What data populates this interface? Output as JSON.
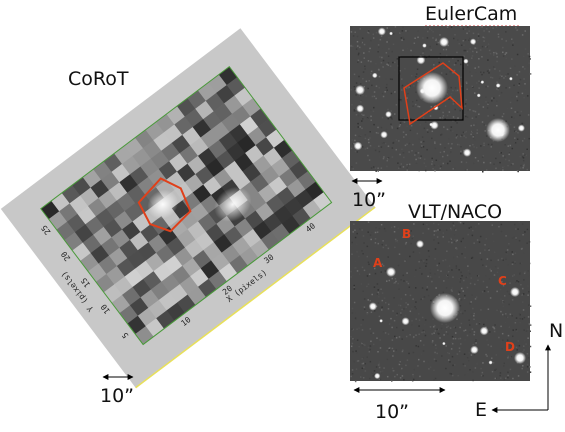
{
  "panels": {
    "corot": {
      "title": "CoRoT",
      "x_label": "X (pixels)",
      "y_label": "Y (pixels)",
      "x_ticks": [
        "10",
        "20",
        "30",
        "40"
      ],
      "y_ticks": [
        "5",
        "10",
        "15",
        "20",
        "25"
      ],
      "scale": "10”"
    },
    "eulercam": {
      "title": "EulerCam",
      "scale": "10”"
    },
    "naco": {
      "title": "VLT/NACO",
      "labels": [
        "A",
        "B",
        "C",
        "D"
      ],
      "scale": "10”"
    }
  },
  "compass": {
    "north": "N",
    "east": "E"
  }
}
